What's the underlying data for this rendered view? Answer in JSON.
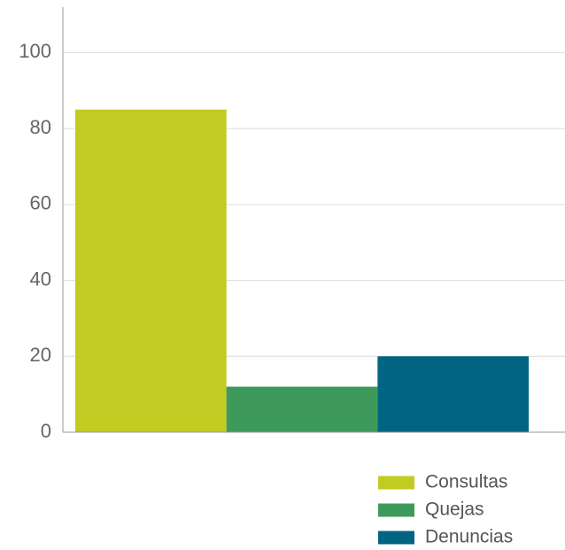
{
  "chart_data": {
    "type": "bar",
    "categories": [
      null
    ],
    "series": [
      {
        "name": "Consultas",
        "color": "#c2cb22",
        "values": [
          85
        ]
      },
      {
        "name": "Quejas",
        "color": "#3d9a5a",
        "values": [
          12
        ]
      },
      {
        "name": "Denuncias",
        "color": "#006482",
        "values": [
          20
        ]
      }
    ],
    "ylim": [
      0,
      112
    ],
    "yticks": [
      0,
      20,
      40,
      60,
      80,
      100
    ],
    "grid": true,
    "legend": "bottom-right"
  }
}
